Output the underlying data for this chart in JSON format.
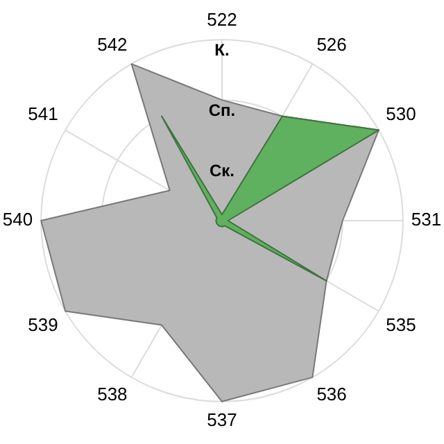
{
  "chart_data": {
    "type": "radar",
    "categories": [
      "522",
      "526",
      "530",
      "531",
      "535",
      "536",
      "537",
      "538",
      "539",
      "540",
      "541",
      "542"
    ],
    "series": [
      {
        "color": "#b8b8b8",
        "values": [
          2,
          2,
          3,
          2,
          2,
          3,
          3,
          2,
          3,
          3,
          1,
          3
        ]
      },
      {
        "color": "#5fb05f",
        "values": [
          0.1,
          2,
          3,
          0.1,
          2,
          0.1,
          0.1,
          0.1,
          0.1,
          0.1,
          0.1,
          2
        ]
      }
    ],
    "ylim": [
      0,
      3
    ],
    "yticks": [
      {
        "value": 1,
        "label": "Ск."
      },
      {
        "value": 2,
        "label": "Сп."
      },
      {
        "value": 3,
        "label": "К."
      }
    ],
    "grid": true,
    "legend": false,
    "marker": "none"
  }
}
